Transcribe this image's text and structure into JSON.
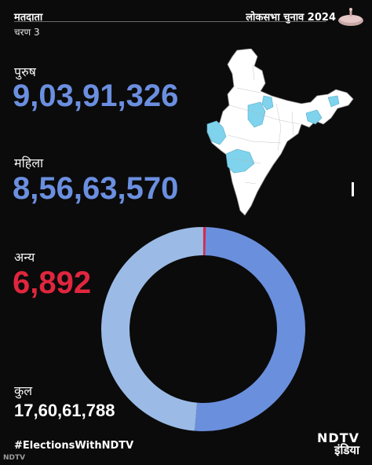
{
  "header": {
    "title": "मतदाता",
    "subtitle": "चरण 3",
    "right_title": "लोकसभा चुनाव 2024",
    "parliament_icon": "parliament-icon"
  },
  "stats": {
    "male_label": "पुरुष",
    "male_value": "9,03,91,326",
    "female_label": "महिला",
    "female_value": "8,56,63,570",
    "other_label": "अन्य",
    "other_value": "6,892",
    "total_label": "कुल",
    "total_value": "17,60,61,788"
  },
  "footer": {
    "hashtag": "#ElectionsWithNDTV",
    "watermark": "NDTV",
    "brand_top": "NDTV",
    "brand_bottom": "इंडिया"
  },
  "map": {
    "icon": "india-map-icon",
    "highlight_color": "#7fd3ec",
    "base_color": "#ffffff"
  },
  "chart_data": {
    "type": "pie",
    "style": "donut",
    "categories": [
      "पुरुष",
      "महिला",
      "अन्य"
    ],
    "values": [
      90391326,
      85663570,
      6892
    ],
    "total": 176061788,
    "colors": [
      "#6a8fdd",
      "#9bbbe6",
      "#d8294a"
    ]
  }
}
